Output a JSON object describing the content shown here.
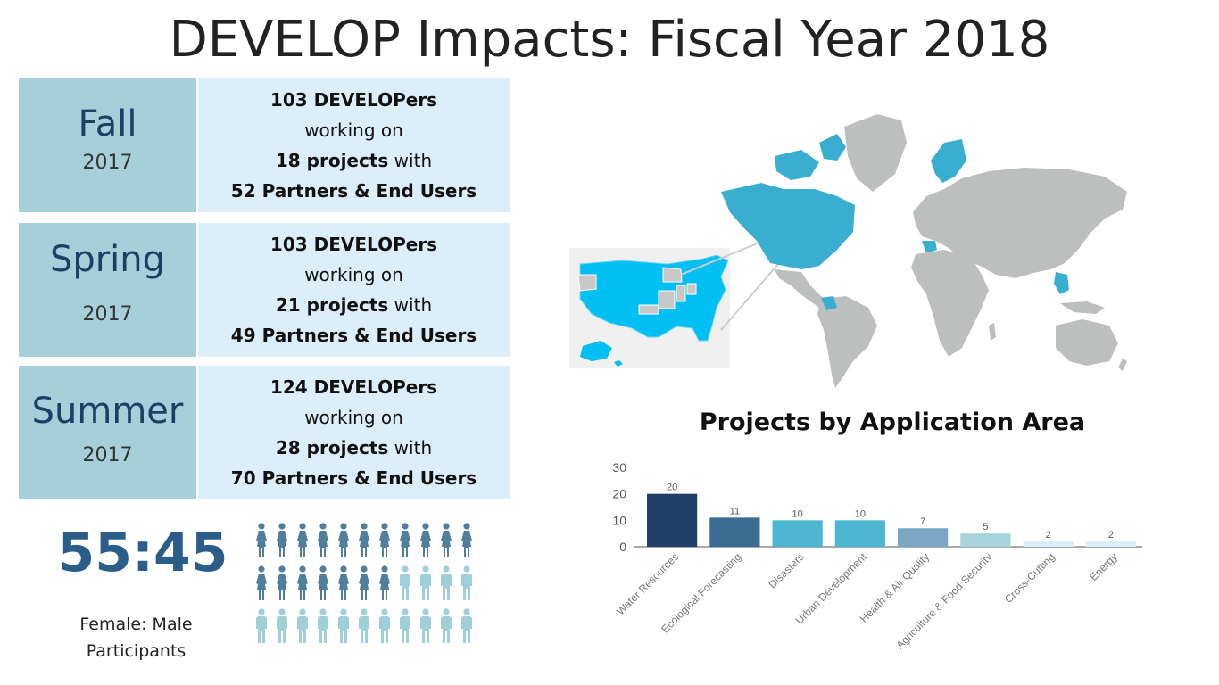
{
  "title": "DEVELOP Impacts: Fiscal Year 2018",
  "seasons": [
    {
      "name": "Fall",
      "year": "2017",
      "developers": "103 DEVELOPers",
      "working": "working on",
      "projects": "18 projects",
      "with": " with",
      "partners": "52 Partners & End Users"
    },
    {
      "name": "Spring",
      "year": "2017",
      "developers": "103 DEVELOPers",
      "working": "working on",
      "projects": "21 projects",
      "with": " with",
      "partners": "49 Partners & End Users"
    },
    {
      "name": "Summer",
      "year": "2017",
      "developers": "124 DEVELOPers",
      "working": "working on",
      "projects": "28 projects",
      "with": " with",
      "partners": "70 Partners & End Users"
    }
  ],
  "ratio": {
    "value": "55:45",
    "label_line1": "Female: Male",
    "label_line2": "Participants",
    "female_icons": 18,
    "male_icons": 15,
    "female_color": "#4f7f9c",
    "male_color": "#9fcfd8"
  },
  "map": {
    "highlight_color": "#3aaed0",
    "land_color": "#bcbfbd",
    "us_highlight_color": "#00bff3"
  },
  "chart_data": {
    "type": "bar",
    "title": "Projects by Application Area",
    "categories": [
      "Water Resources",
      "Ecological Forecasting",
      "Disasters",
      "Urban Development",
      "Health & Air Quality",
      "Agriculture & Food Security",
      "Cross-Cutting",
      "Energy"
    ],
    "values": [
      20,
      11,
      10,
      10,
      7,
      5,
      2,
      2
    ],
    "colors": [
      "#1f4066",
      "#3b6d93",
      "#4db6d1",
      "#4db6d1",
      "#7aa7c3",
      "#a8d3dd",
      "#dcebf5",
      "#dcebf5"
    ],
    "ylim": [
      0,
      30
    ],
    "yticks": [
      0,
      10,
      20,
      30
    ],
    "grid": false
  }
}
